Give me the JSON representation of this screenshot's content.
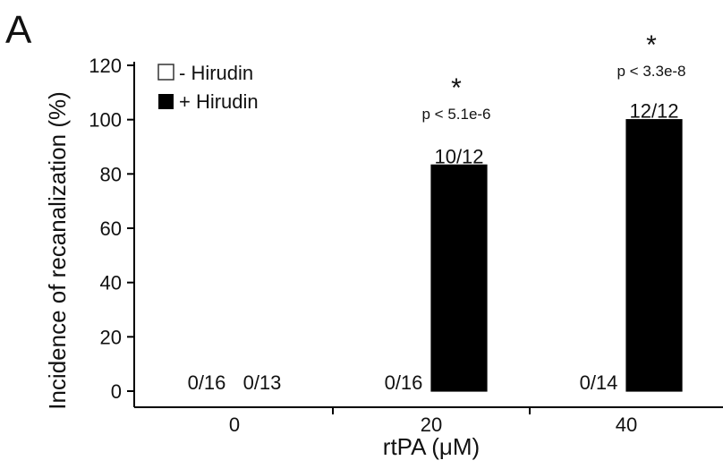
{
  "panel_label": "A",
  "chart_data": {
    "type": "bar",
    "categories": [
      "0",
      "20",
      "40"
    ],
    "series": [
      {
        "name": "- Hirudin",
        "values": [
          0,
          0,
          0
        ],
        "labels": [
          "0/16",
          "0/16",
          "0/14"
        ],
        "color": "#ffffff"
      },
      {
        "name": "+ Hirudin",
        "values": [
          0,
          83.3,
          100
        ],
        "labels": [
          "0/13",
          "10/12",
          "12/12"
        ],
        "color": "#000000"
      }
    ],
    "title": "",
    "xlabel": "rtPA (μM)",
    "ylabel": "Incidence of recanalization (%)",
    "ylim": [
      0,
      120
    ],
    "yticks": [
      "0",
      "20",
      "40",
      "60",
      "80",
      "100",
      "120"
    ],
    "grid": false,
    "legend_position": "top-left",
    "annotations": [
      {
        "category": "20",
        "star": "*",
        "text": "p < 5.1e-6"
      },
      {
        "category": "40",
        "star": "*",
        "text": "p < 3.3e-8"
      }
    ]
  }
}
